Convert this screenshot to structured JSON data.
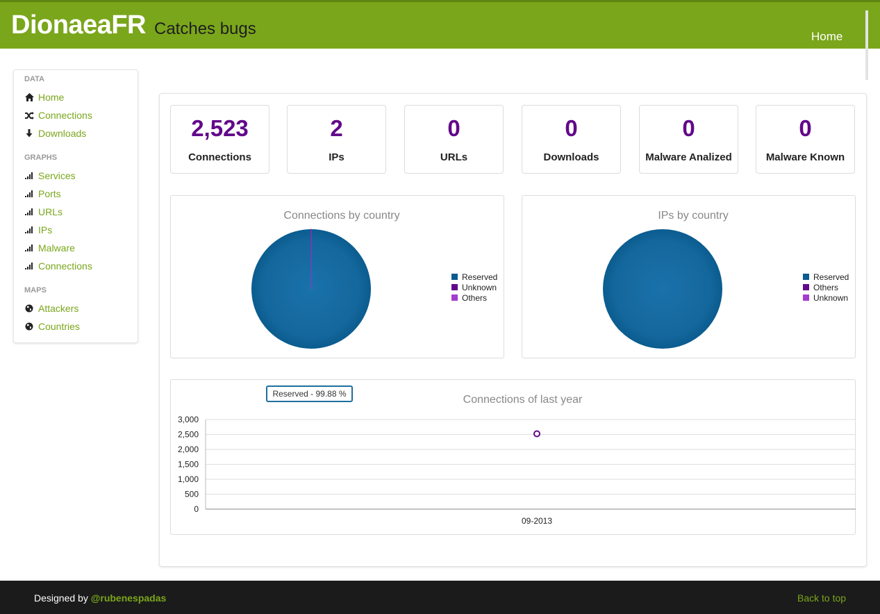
{
  "header": {
    "brand": "DionaeaFR",
    "tagline": "Catches bugs",
    "nav_home": "Home"
  },
  "sidebar": {
    "sections": [
      {
        "header": "DATA",
        "items": [
          {
            "label": "Home",
            "icon": "home-icon"
          },
          {
            "label": "Connections",
            "icon": "shuffle-icon"
          },
          {
            "label": "Downloads",
            "icon": "download-icon"
          }
        ]
      },
      {
        "header": "GRAPHS",
        "items": [
          {
            "label": "Services",
            "icon": "signal-icon"
          },
          {
            "label": "Ports",
            "icon": "signal-icon"
          },
          {
            "label": "URLs",
            "icon": "signal-icon"
          },
          {
            "label": "IPs",
            "icon": "signal-icon"
          },
          {
            "label": "Malware",
            "icon": "signal-icon"
          },
          {
            "label": "Connections",
            "icon": "signal-icon"
          }
        ]
      },
      {
        "header": "MAPS",
        "items": [
          {
            "label": "Attackers",
            "icon": "globe-icon"
          },
          {
            "label": "Countries",
            "icon": "globe-icon"
          }
        ]
      }
    ]
  },
  "stats": [
    {
      "value": "2,523",
      "label": "Connections"
    },
    {
      "value": "2",
      "label": "IPs"
    },
    {
      "value": "0",
      "label": "URLs"
    },
    {
      "value": "0",
      "label": "Downloads"
    },
    {
      "value": "0",
      "label": "Malware Analized"
    },
    {
      "value": "0",
      "label": "Malware Known"
    }
  ],
  "colors": {
    "brand_green": "#7aa61b",
    "stat_purple": "#62088a",
    "reserved": "#0b5c8f",
    "unknown": "#62088a",
    "others": "#a33ccf"
  },
  "chart_data": [
    {
      "type": "pie",
      "title": "Connections by country",
      "labels": [
        "Reserved",
        "Unknown",
        "Others"
      ],
      "values": [
        99.88,
        0.08,
        0.04
      ],
      "legend_position": "right"
    },
    {
      "type": "pie",
      "title": "IPs by country",
      "labels": [
        "Reserved",
        "Others",
        "Unknown"
      ],
      "values": [
        100,
        0,
        0
      ],
      "legend_position": "right"
    },
    {
      "type": "line",
      "title": "Connections of last year",
      "categories": [
        "09-2013"
      ],
      "series": [
        {
          "values": [
            2523
          ]
        }
      ],
      "yticks": [
        "0",
        "500",
        "1,000",
        "1,500",
        "2,000",
        "2,500",
        "3,000"
      ],
      "ylim": [
        0,
        3000
      ],
      "grid": true,
      "tooltip": "Reserved - 99.88 %"
    }
  ],
  "footer": {
    "designed_by": "Designed by ",
    "author": "@rubenespadas",
    "back_to_top": "Back to top"
  }
}
